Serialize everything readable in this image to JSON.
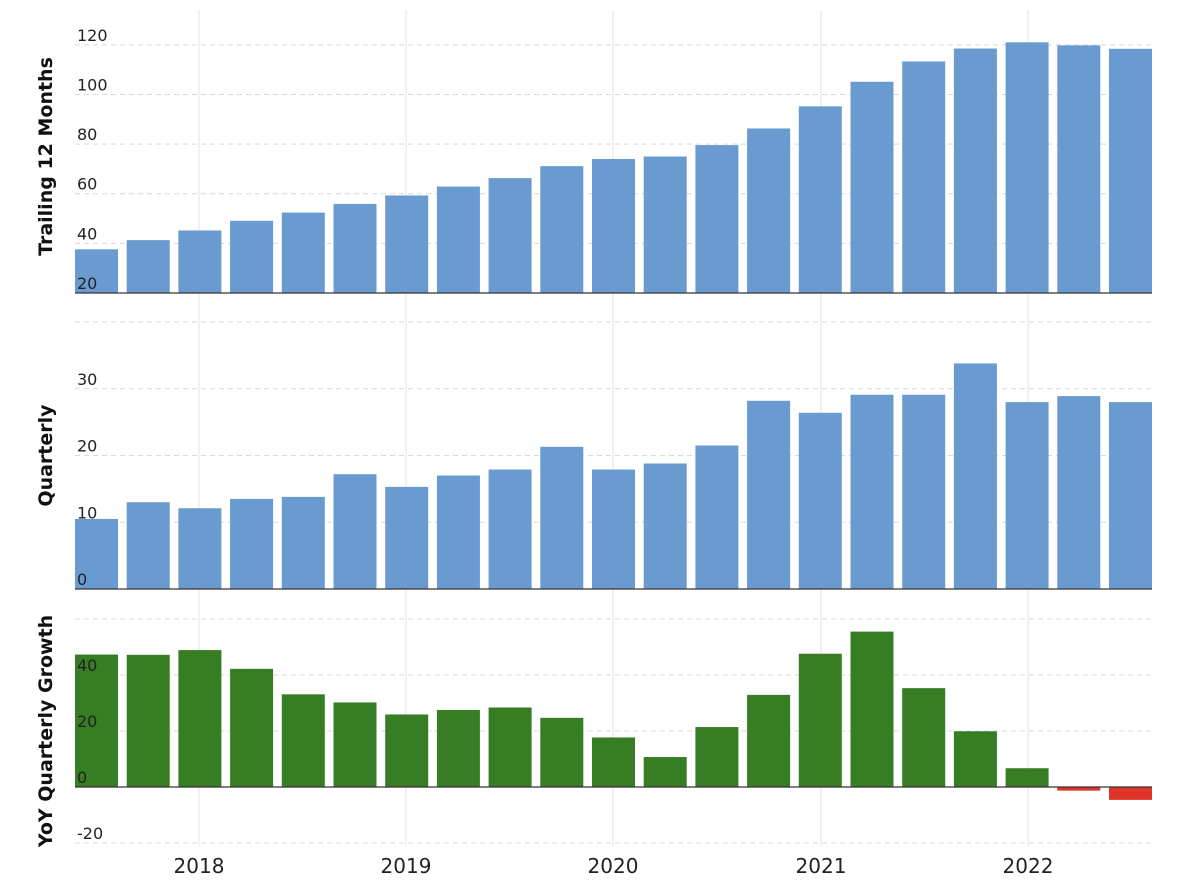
{
  "colors": {
    "revenue_bar": "#6a9bd0",
    "growth_positive": "#367d24",
    "growth_negative": "#e0342a",
    "gridline": "#d9d9d9",
    "vertical_grid": "#e3e3e3",
    "axis_line": "#333333"
  },
  "x_labels": [
    "2018",
    "2019",
    "2020",
    "2021",
    "2022"
  ],
  "chart_data": [
    {
      "type": "bar",
      "ylabel": "Trailing 12 Months",
      "ylim": [
        20,
        130
      ],
      "yticks": [
        20,
        40,
        60,
        80,
        100,
        120
      ],
      "grid": true,
      "values": [
        37.6,
        41.3,
        45.2,
        49.1,
        52.4,
        55.9,
        59.3,
        62.9,
        66.3,
        71.1,
        74.0,
        75.0,
        79.6,
        86.3,
        95.2,
        105.1,
        113.3,
        118.5,
        121.0,
        119.8,
        118.4
      ]
    },
    {
      "type": "bar",
      "ylabel": "Quarterly",
      "ylim": [
        0,
        40
      ],
      "yticks": [
        0,
        10,
        20,
        30
      ],
      "grid": true,
      "values": [
        10.5,
        13.0,
        12.1,
        13.5,
        13.8,
        17.2,
        15.3,
        17.0,
        17.9,
        21.3,
        17.9,
        18.8,
        21.5,
        28.2,
        26.4,
        29.1,
        29.1,
        33.8,
        28.0,
        28.9,
        28.0
      ]
    },
    {
      "type": "bar",
      "ylabel": "YoY Quarterly Growth",
      "ylim": [
        -20,
        60
      ],
      "yticks": [
        -20,
        0,
        20,
        40
      ],
      "grid": true,
      "values": [
        47.3,
        47.2,
        48.9,
        42.2,
        33.1,
        30.2,
        25.9,
        27.5,
        28.4,
        24.7,
        17.7,
        10.7,
        21.4,
        32.9,
        47.6,
        55.5,
        35.3,
        19.9,
        6.7,
        -1.3,
        -4.6
      ]
    }
  ]
}
